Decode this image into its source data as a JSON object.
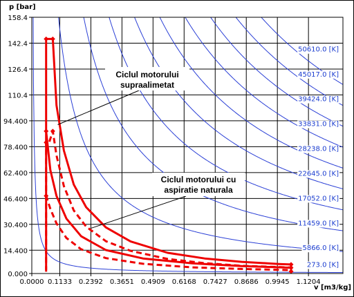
{
  "chart_data": {
    "type": "line",
    "x_axis": {
      "label": "v [m3/kg]",
      "range": [
        0.0,
        1.26
      ],
      "ticks": [
        "0.0000",
        "0.1133",
        "0.2392",
        "0.3651",
        "0.4909",
        "0.6168",
        "0.7427",
        "0.8686",
        "0.9945",
        "1.1204"
      ]
    },
    "y_axis": {
      "label": "p [bar]",
      "range": [
        0.0,
        158.4
      ],
      "ticks": [
        "0.000",
        "14.400",
        "30.400",
        "46.400",
        "62.400",
        "78.400",
        "94.400",
        "110.4",
        "126.4",
        "142.4",
        "158.4"
      ]
    },
    "grid": true,
    "isotherm_labels": [
      "50610.0 [K]",
      "45017.0 [K]",
      "39424.0 [K]",
      "33831.0 [K]",
      "28238.0 [K]",
      "22645.0 [K]",
      "17052.0 [K]",
      "11459.0 [K]",
      "5866.0 [K]",
      "273.0 [K]"
    ],
    "isotherms": [
      {
        "name": "50610.0 [K]",
        "pv": 147.2
      },
      {
        "name": "45017.0 [K]",
        "pv": 130.9
      },
      {
        "name": "39424.0 [K]",
        "pv": 114.7
      },
      {
        "name": "33831.0 [K]",
        "pv": 98.4
      },
      {
        "name": "28238.0 [K]",
        "pv": 82.1
      },
      {
        "name": "22645.0 [K]",
        "pv": 65.9
      },
      {
        "name": "17052.0 [K]",
        "pv": 49.6
      },
      {
        "name": "11459.0 [K]",
        "pv": 33.3
      },
      {
        "name": "5866.0 [K]",
        "pv": 17.1
      },
      {
        "name": "273.0 [K]",
        "pv": 0.8
      }
    ],
    "series": [
      {
        "style": "solid",
        "color": "#ee0000",
        "points": [
          {
            "x": 0.058,
            "y": 2.2
          },
          {
            "x": 0.058,
            "y": 145.0
          },
          {
            "x": 0.085,
            "y": 145.0
          },
          {
            "x": 0.1,
            "y": 104.0
          },
          {
            "x": 0.13,
            "y": 76.0
          },
          {
            "x": 0.17,
            "y": 55.0
          },
          {
            "x": 0.22,
            "y": 41.0
          },
          {
            "x": 0.3,
            "y": 28.5
          },
          {
            "x": 0.4,
            "y": 19.8
          },
          {
            "x": 0.55,
            "y": 12.8
          },
          {
            "x": 0.7,
            "y": 9.3
          },
          {
            "x": 0.85,
            "y": 7.2
          },
          {
            "x": 1.0,
            "y": 5.9
          },
          {
            "x": 1.05,
            "y": 5.6
          },
          {
            "x": 1.05,
            "y": 3.6
          },
          {
            "x": 0.85,
            "y": 4.6
          },
          {
            "x": 0.65,
            "y": 6.3
          },
          {
            "x": 0.45,
            "y": 9.3
          },
          {
            "x": 0.3,
            "y": 14.5
          },
          {
            "x": 0.2,
            "y": 23.0
          },
          {
            "x": 0.14,
            "y": 34.0
          },
          {
            "x": 0.1,
            "y": 48.0
          },
          {
            "x": 0.075,
            "y": 64.0
          },
          {
            "x": 0.058,
            "y": 88.0
          }
        ]
      },
      {
        "style": "dashed",
        "color": "#ee0000",
        "points": [
          {
            "x": 0.058,
            "y": 1.1
          },
          {
            "x": 0.058,
            "y": 81.0
          },
          {
            "x": 0.068,
            "y": 80.0
          },
          {
            "x": 0.085,
            "y": 88.0
          },
          {
            "x": 0.1,
            "y": 73.0
          },
          {
            "x": 0.13,
            "y": 54.0
          },
          {
            "x": 0.17,
            "y": 39.0
          },
          {
            "x": 0.22,
            "y": 29.0
          },
          {
            "x": 0.3,
            "y": 20.0
          },
          {
            "x": 0.4,
            "y": 14.0
          },
          {
            "x": 0.55,
            "y": 9.0
          },
          {
            "x": 0.7,
            "y": 6.4
          },
          {
            "x": 0.85,
            "y": 4.8
          },
          {
            "x": 1.05,
            "y": 3.7
          },
          {
            "x": 1.05,
            "y": 2.1
          },
          {
            "x": 0.85,
            "y": 2.8
          },
          {
            "x": 0.65,
            "y": 3.8
          },
          {
            "x": 0.45,
            "y": 6.0
          },
          {
            "x": 0.3,
            "y": 9.5
          },
          {
            "x": 0.2,
            "y": 15.0
          },
          {
            "x": 0.14,
            "y": 22.0
          },
          {
            "x": 0.1,
            "y": 31.0
          },
          {
            "x": 0.075,
            "y": 40.0
          },
          {
            "x": 0.058,
            "y": 48.0
          }
        ]
      }
    ],
    "markers": [
      {
        "x": 0.058,
        "y": 145.0
      },
      {
        "x": 0.085,
        "y": 145.0
      },
      {
        "x": 0.058,
        "y": 88.0
      },
      {
        "x": 0.085,
        "y": 88.0
      },
      {
        "x": 0.058,
        "y": 81.0
      },
      {
        "x": 0.058,
        "y": 48.0
      },
      {
        "x": 1.05,
        "y": 5.6
      },
      {
        "x": 1.05,
        "y": 3.6
      },
      {
        "x": 1.05,
        "y": 1.3
      }
    ],
    "annotations": [
      {
        "lines": [
          "Ciclul motorului",
          "supraalimetat"
        ]
      },
      {
        "lines": [
          "Ciclul motorului cu",
          "aspiratie naturala"
        ]
      }
    ]
  }
}
